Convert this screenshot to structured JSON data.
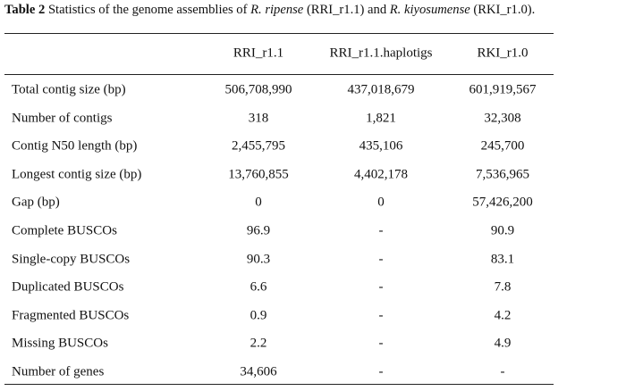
{
  "caption": {
    "label": "Table 2",
    "segments": [
      {
        "text": " Statistics of the genome assemblies of ",
        "italic": false
      },
      {
        "text": "R. ripense",
        "italic": true
      },
      {
        "text": " (RRI_r1.1) and ",
        "italic": false
      },
      {
        "text": "R. kiyosumense",
        "italic": true
      },
      {
        "text": " (RKI_r1.0).",
        "italic": false
      }
    ]
  },
  "table": {
    "columns": [
      "RRI_r1.1",
      "RRI_r1.1.haplotigs",
      "RKI_r1.0"
    ],
    "rows": [
      [
        "Total contig size (bp)",
        "506,708,990",
        "437,018,679",
        "601,919,567"
      ],
      [
        "Number of contigs",
        "318",
        "1,821",
        "32,308"
      ],
      [
        "Contig N50 length (bp)",
        "2,455,795",
        "435,106",
        "245,700"
      ],
      [
        "Longest contig size (bp)",
        "13,760,855",
        "4,402,178",
        "7,536,965"
      ],
      [
        "Gap (bp)",
        "0",
        "0",
        "57,426,200"
      ],
      [
        "Complete BUSCOs",
        "96.9",
        "-",
        "90.9"
      ],
      [
        "Single-copy BUSCOs",
        "90.3",
        "-",
        "83.1"
      ],
      [
        "Duplicated BUSCOs",
        "6.6",
        "-",
        "7.8"
      ],
      [
        "Fragmented BUSCOs",
        "0.9",
        "-",
        "4.2"
      ],
      [
        "Missing BUSCOs",
        "2.2",
        "-",
        "4.9"
      ],
      [
        "Number of genes",
        "34,606",
        "-",
        "-"
      ]
    ]
  }
}
